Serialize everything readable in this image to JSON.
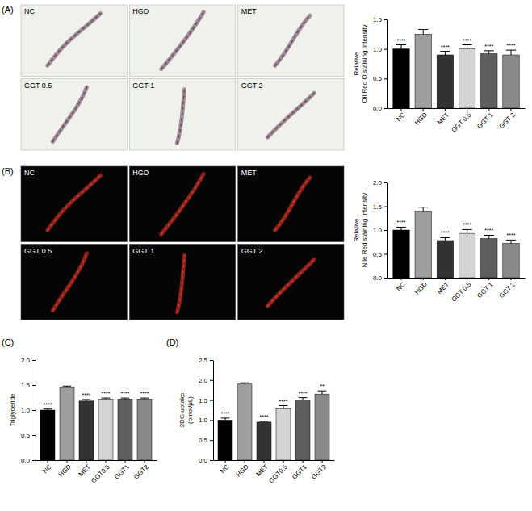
{
  "panel_letters": [
    "(A)",
    "(B)",
    "(C)",
    "(D)"
  ],
  "image_panels": [
    [
      "NC",
      "HGD",
      "MET",
      "GGT 0.5",
      "GGT 1",
      "GGT 2"
    ],
    [
      "NC",
      "HGD",
      "MET",
      "GGT 0.5",
      "GGT 1",
      "GGT 2"
    ]
  ],
  "chart_data": [
    {
      "type": "bar",
      "ylabel": [
        "Relative",
        "Oil Red O staining Intensity"
      ],
      "categories": [
        "NC",
        "HGD",
        "MET",
        "GGT 0.5",
        "GGT 1",
        "GGT 2"
      ],
      "values": [
        1.0,
        1.25,
        0.9,
        1.0,
        0.92,
        0.9
      ],
      "errors": [
        0.07,
        0.08,
        0.06,
        0.07,
        0.05,
        0.08
      ],
      "annotations": [
        "****",
        null,
        "****",
        "****",
        "****",
        "****"
      ],
      "colors": [
        "#000000",
        "#9e9e9e",
        "#333333",
        "#d4d4d4",
        "#5e5e5e",
        "#8a8a8a"
      ],
      "ylim": [
        0,
        1.5
      ],
      "yticks": [
        {
          "value": 0,
          "label": "0.0"
        },
        {
          "value": 0.5,
          "label": "0.5"
        },
        {
          "value": 1,
          "label": "1.0"
        },
        {
          "value": 1.5,
          "label": "1.5"
        }
      ]
    },
    {
      "type": "bar",
      "ylabel": [
        "Relative",
        "Nile Red staining Intensity"
      ],
      "categories": [
        "NC",
        "HGD",
        "MET",
        "GGT 0.5",
        "GGT 1",
        "GGT 2"
      ],
      "values": [
        1.0,
        1.4,
        0.78,
        0.93,
        0.82,
        0.72
      ],
      "errors": [
        0.06,
        0.08,
        0.06,
        0.08,
        0.07,
        0.07
      ],
      "annotations": [
        "****",
        null,
        "****",
        "****",
        "****",
        "****"
      ],
      "colors": [
        "#000000",
        "#9e9e9e",
        "#333333",
        "#d4d4d4",
        "#5e5e5e",
        "#8a8a8a"
      ],
      "ylim": [
        0,
        2
      ],
      "yticks": [
        {
          "value": 0,
          "label": "0.0"
        },
        {
          "value": 0.5,
          "label": "0.5"
        },
        {
          "value": 1,
          "label": "1.0"
        },
        {
          "value": 1.5,
          "label": "1.5"
        },
        {
          "value": 2,
          "label": "2.0"
        }
      ]
    },
    {
      "type": "bar",
      "ylabel": [
        "Triglyceride"
      ],
      "categories": [
        "NC",
        "HGD",
        "MET",
        "GGT0.5",
        "GGT1",
        "GGT2"
      ],
      "values": [
        1.0,
        1.45,
        1.18,
        1.22,
        1.22,
        1.22
      ],
      "errors": [
        0.02,
        0.03,
        0.03,
        0.02,
        0.02,
        0.02
      ],
      "annotations": [
        "****",
        null,
        "****",
        "****",
        "****",
        "****"
      ],
      "colors": [
        "#000000",
        "#9e9e9e",
        "#333333",
        "#d4d4d4",
        "#5e5e5e",
        "#8a8a8a"
      ],
      "ylim": [
        0,
        2
      ],
      "yticks": [
        {
          "value": 0,
          "label": "0.0"
        },
        {
          "value": 0.5,
          "label": "0.5"
        },
        {
          "value": 1,
          "label": "1.0"
        },
        {
          "value": 1.5,
          "label": "1.5"
        },
        {
          "value": 2,
          "label": "2.0"
        }
      ]
    },
    {
      "type": "bar",
      "ylabel": [
        "2DG uptake",
        "(pmol/μL)"
      ],
      "categories": [
        "NC",
        "HGD",
        "MET",
        "GGT0.5",
        "GGT1",
        "GGT2"
      ],
      "values": [
        1.0,
        1.9,
        0.95,
        1.28,
        1.5,
        1.65
      ],
      "errors": [
        0.05,
        0.03,
        0.02,
        0.08,
        0.06,
        0.08
      ],
      "annotations": [
        "****",
        null,
        "****",
        "****",
        "****",
        "**"
      ],
      "colors": [
        "#000000",
        "#9e9e9e",
        "#333333",
        "#d4d4d4",
        "#5e5e5e",
        "#8a8a8a"
      ],
      "ylim": [
        0,
        2.5
      ],
      "yticks": [
        {
          "value": 0,
          "label": "0.0"
        },
        {
          "value": 0.5,
          "label": "0.5"
        },
        {
          "value": 1,
          "label": "1.0"
        },
        {
          "value": 1.5,
          "label": "1.5"
        },
        {
          "value": 2,
          "label": "2.0"
        },
        {
          "value": 2.5,
          "label": "2.5"
        }
      ]
    }
  ]
}
